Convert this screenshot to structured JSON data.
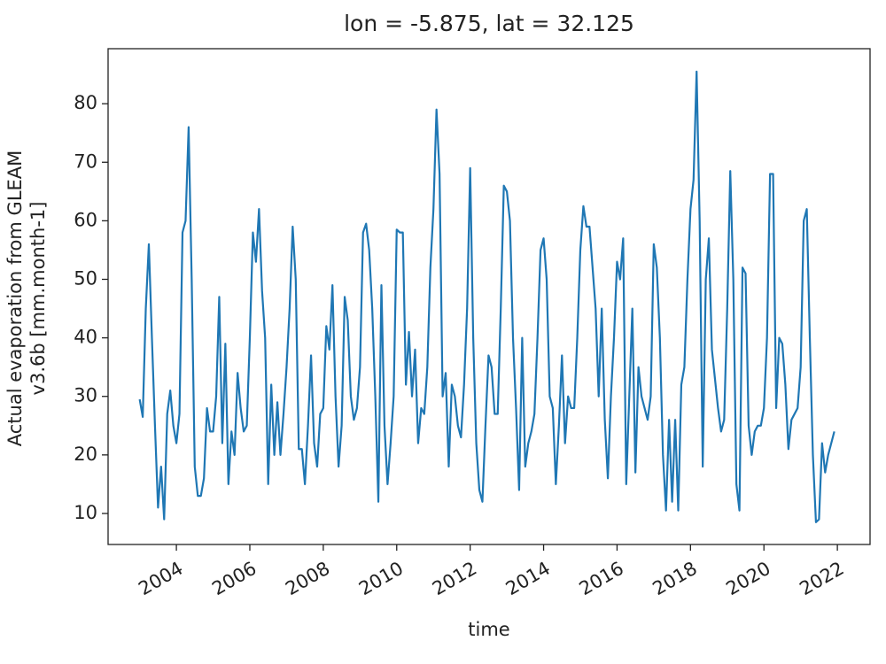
{
  "chart_data": {
    "type": "line",
    "title": "lon = -5.875, lat = 32.125",
    "x_label": "time",
    "y_label": [
      "Actual evaporation from GLEAM",
      "v3.6b [mm.month-1]"
    ],
    "x": [
      "2003-01",
      "2003-02",
      "2003-03",
      "2003-04",
      "2003-05",
      "2003-06",
      "2003-07",
      "2003-08",
      "2003-09",
      "2003-10",
      "2003-11",
      "2003-12",
      "2004-01",
      "2004-02",
      "2004-03",
      "2004-04",
      "2004-05",
      "2004-06",
      "2004-07",
      "2004-08",
      "2004-09",
      "2004-10",
      "2004-11",
      "2004-12",
      "2005-01",
      "2005-02",
      "2005-03",
      "2005-04",
      "2005-05",
      "2005-06",
      "2005-07",
      "2005-08",
      "2005-09",
      "2005-10",
      "2005-11",
      "2005-12",
      "2006-01",
      "2006-02",
      "2006-03",
      "2006-04",
      "2006-05",
      "2006-06",
      "2006-07",
      "2006-08",
      "2006-09",
      "2006-10",
      "2006-11",
      "2006-12",
      "2007-01",
      "2007-02",
      "2007-03",
      "2007-04",
      "2007-05",
      "2007-06",
      "2007-07",
      "2007-08",
      "2007-09",
      "2007-10",
      "2007-11",
      "2007-12",
      "2008-01",
      "2008-02",
      "2008-03",
      "2008-04",
      "2008-05",
      "2008-06",
      "2008-07",
      "2008-08",
      "2008-09",
      "2008-10",
      "2008-11",
      "2008-12",
      "2009-01",
      "2009-02",
      "2009-03",
      "2009-04",
      "2009-05",
      "2009-06",
      "2009-07",
      "2009-08",
      "2009-09",
      "2009-10",
      "2009-11",
      "2009-12",
      "2010-01",
      "2010-02",
      "2010-03",
      "2010-04",
      "2010-05",
      "2010-06",
      "2010-07",
      "2010-08",
      "2010-09",
      "2010-10",
      "2010-11",
      "2010-12",
      "2011-01",
      "2011-02",
      "2011-03",
      "2011-04",
      "2011-05",
      "2011-06",
      "2011-07",
      "2011-08",
      "2011-09",
      "2011-10",
      "2011-11",
      "2011-12",
      "2012-01",
      "2012-02",
      "2012-03",
      "2012-04",
      "2012-05",
      "2012-06",
      "2012-07",
      "2012-08",
      "2012-09",
      "2012-10",
      "2012-11",
      "2012-12",
      "2013-01",
      "2013-02",
      "2013-03",
      "2013-04",
      "2013-05",
      "2013-06",
      "2013-07",
      "2013-08",
      "2013-09",
      "2013-10",
      "2013-11",
      "2013-12",
      "2014-01",
      "2014-02",
      "2014-03",
      "2014-04",
      "2014-05",
      "2014-06",
      "2014-07",
      "2014-08",
      "2014-09",
      "2014-10",
      "2014-11",
      "2014-12",
      "2015-01",
      "2015-02",
      "2015-03",
      "2015-04",
      "2015-05",
      "2015-06",
      "2015-07",
      "2015-08",
      "2015-09",
      "2015-10",
      "2015-11",
      "2015-12",
      "2016-01",
      "2016-02",
      "2016-03",
      "2016-04",
      "2016-05",
      "2016-06",
      "2016-07",
      "2016-08",
      "2016-09",
      "2016-10",
      "2016-11",
      "2016-12",
      "2017-01",
      "2017-02",
      "2017-03",
      "2017-04",
      "2017-05",
      "2017-06",
      "2017-07",
      "2017-08",
      "2017-09",
      "2017-10",
      "2017-11",
      "2017-12",
      "2018-01",
      "2018-02",
      "2018-03",
      "2018-04",
      "2018-05",
      "2018-06",
      "2018-07",
      "2018-08",
      "2018-09",
      "2018-10",
      "2018-11",
      "2018-12",
      "2019-01",
      "2019-02",
      "2019-03",
      "2019-04",
      "2019-05",
      "2019-06",
      "2019-07",
      "2019-08",
      "2019-09",
      "2019-10",
      "2019-11",
      "2019-12",
      "2020-01",
      "2020-02",
      "2020-03",
      "2020-04",
      "2020-05",
      "2020-06",
      "2020-07",
      "2020-08",
      "2020-09",
      "2020-10",
      "2020-11",
      "2020-12",
      "2021-01",
      "2021-02",
      "2021-03",
      "2021-04",
      "2021-05",
      "2021-06",
      "2021-07",
      "2021-08",
      "2021-09",
      "2021-10",
      "2021-11",
      "2021-12"
    ],
    "series": [
      {
        "color": "#1f77b4",
        "values": [
          29.5,
          26.5,
          45,
          56,
          40,
          25,
          11,
          18,
          9,
          27,
          31,
          25,
          22,
          27,
          58,
          60,
          76,
          50,
          18,
          13,
          13,
          16,
          28,
          24,
          24,
          30,
          47,
          22,
          39,
          15,
          24,
          20,
          34,
          28,
          24,
          25,
          40,
          58,
          53,
          62,
          48,
          40,
          15,
          32,
          20,
          29,
          20,
          27,
          35,
          45,
          59,
          50,
          21,
          21,
          15,
          25,
          37,
          22,
          18,
          27,
          28,
          42,
          38,
          49,
          30,
          18,
          25,
          47,
          43,
          30,
          26,
          28,
          35,
          58,
          59.5,
          55,
          45,
          30,
          12,
          49,
          25,
          15,
          22,
          30,
          58.5,
          58,
          58,
          32,
          41,
          30,
          38,
          22,
          28,
          27,
          35,
          52,
          62,
          79,
          68,
          30,
          34,
          18,
          32,
          30,
          25,
          23,
          32,
          45,
          69,
          40,
          22,
          14,
          12,
          25,
          37,
          35,
          27,
          27,
          45,
          66,
          65,
          60,
          40,
          28,
          14,
          40,
          18,
          22,
          24,
          27,
          40,
          55,
          57,
          50,
          30,
          28,
          15,
          25,
          37,
          22,
          30,
          28,
          28,
          40,
          55,
          62.5,
          59,
          59,
          52,
          45,
          30,
          45,
          26,
          16,
          30,
          40,
          53,
          50,
          57,
          15,
          30,
          45,
          17,
          35,
          30,
          28,
          26,
          30,
          56,
          52,
          40,
          20,
          10.5,
          26,
          12,
          26,
          10.5,
          32,
          35,
          50,
          62,
          67,
          85.5,
          60,
          18,
          50,
          57,
          38,
          33,
          28,
          24,
          26,
          45,
          68.5,
          50,
          15,
          10.5,
          52,
          51,
          25,
          20,
          24,
          25,
          25,
          28,
          40,
          68,
          68,
          28,
          40,
          39,
          32,
          21,
          26,
          27,
          28,
          35,
          60,
          62,
          40,
          20,
          8.5,
          9,
          22,
          17,
          20,
          22,
          24
        ]
      }
    ],
    "xlim": [
      2002.14,
      2022.89
    ],
    "xticks": [
      2004,
      2006,
      2008,
      2010,
      2012,
      2014,
      2016,
      2018,
      2020,
      2022
    ],
    "ylim": [
      4.7,
      89.4
    ],
    "yticks": [
      10,
      20,
      30,
      40,
      50,
      60,
      70,
      80
    ],
    "grid": false
  }
}
